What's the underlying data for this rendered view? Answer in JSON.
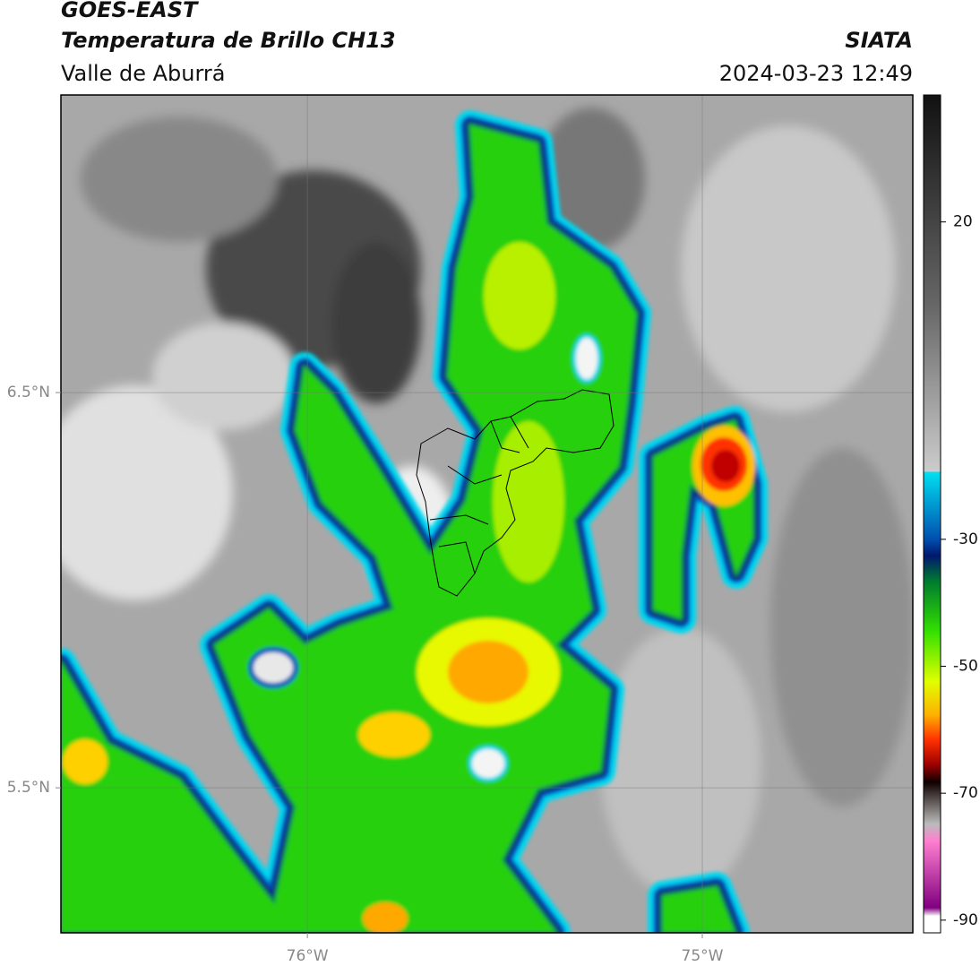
{
  "header": {
    "satellite": "GOES-EAST",
    "product": "Temperatura de Brillo CH13",
    "region": "Valle de Aburrá",
    "source": "SIATA",
    "datetime": "2024-03-23 12:49"
  },
  "map": {
    "xlim": [
      -76.624,
      -74.467
    ],
    "ylim": [
      5.133,
      7.253
    ],
    "xticks": [
      {
        "value": -76,
        "label": "76°W"
      },
      {
        "value": -75,
        "label": "75°W"
      }
    ],
    "yticks": [
      {
        "value": 6.5,
        "label": "6.5°N"
      },
      {
        "value": 5.5,
        "label": "5.5°N"
      }
    ],
    "grid": true
  },
  "colorbar": {
    "lim": [
      -92,
      40
    ],
    "ticks": [
      20,
      -30,
      -50,
      -70,
      -90
    ]
  }
}
